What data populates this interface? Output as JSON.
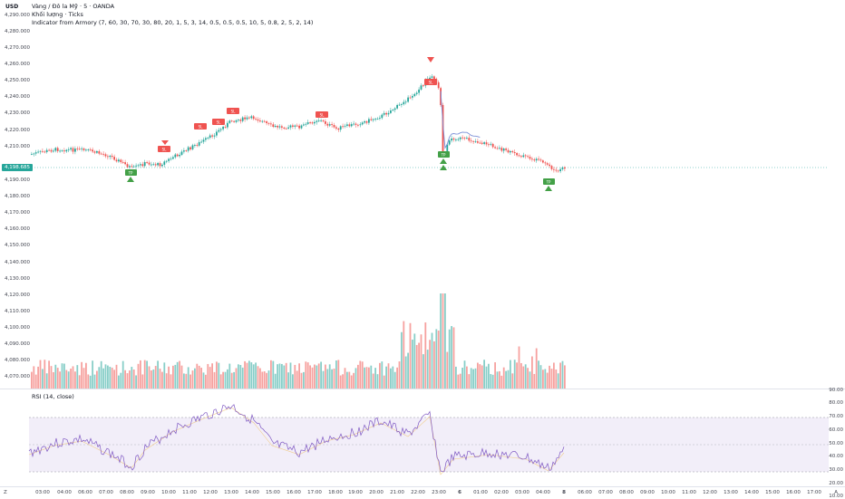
{
  "axis": {
    "currency": "USD",
    "price_ticks": [
      "4,290.000",
      "4,280.000",
      "4,270.000",
      "4,260.000",
      "4,250.000",
      "4,240.000",
      "4,230.000",
      "4,220.000",
      "4,210.000",
      "4,190.000",
      "4,180.000",
      "4,170.000",
      "4,160.000",
      "4,150.000",
      "4,140.000",
      "4,130.000",
      "4,120.000",
      "4,110.000",
      "4,100.000",
      "4,090.000",
      "4,080.000",
      "4,070.000"
    ],
    "current_price": "4,198.685",
    "rsi_ticks": [
      "90.00",
      "80.00",
      "70.00",
      "60.00",
      "50.00",
      "40.00",
      "30.00",
      "20.00",
      "10.00"
    ]
  },
  "legend": {
    "line1": "Vàng / Đô la Mỹ · 5 · OANDA",
    "line2": "Khối lượng · Ticks",
    "line3": "Indicator from Armory (7, 60, 30, 70, 30, 80, 20, 1, 5, 3, 14, 0.5, 0.5, 0.5, 10, 5, 0.8, 2, 5, 2, 14)"
  },
  "rsi": {
    "label": "RSI (14, close)",
    "upper": 70,
    "lower": 30
  },
  "time_axis": {
    "tz": "Z",
    "ticks": [
      "03:00",
      "04:00",
      "06:00",
      "07:00",
      "08:00",
      "09:00",
      "10:00",
      "11:00",
      "12:00",
      "13:00",
      "14:00",
      "15:00",
      "16:00",
      "17:00",
      "18:00",
      "19:00",
      "20:00",
      "21:00",
      "22:00",
      "23:00",
      "6",
      "01:00",
      "02:00",
      "03:00",
      "04:00",
      "8",
      "06:00",
      "07:00",
      "08:00",
      "09:00",
      "10:00",
      "11:00",
      "12:00",
      "13:00",
      "14:00",
      "15:00",
      "16:00",
      "17:00"
    ],
    "auto": "A"
  },
  "signals": {
    "tp_labels": [
      "TP",
      "TP",
      "TP"
    ],
    "sl_labels": [
      "SL",
      "SL",
      "SL",
      "SL",
      "SL",
      "SL"
    ]
  },
  "colors": {
    "up": "#26a69a",
    "down": "#ef5350",
    "rsi_line": "#7e57c2",
    "rsi_band": "#ede7f6",
    "ma_line": "#7b8fd6"
  }
}
